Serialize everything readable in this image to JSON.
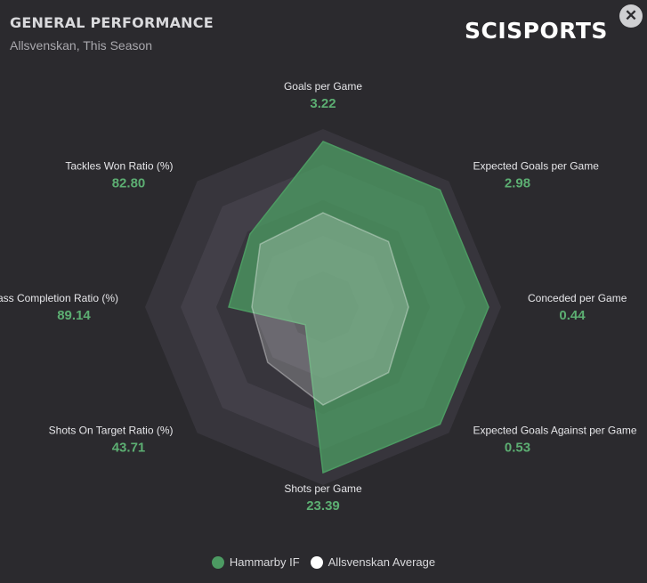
{
  "header": {
    "title": "GENERAL PERFORMANCE",
    "subtitle": "Allsvenskan, This Season",
    "logo": "SCISPORTS",
    "close_icon": "close-icon",
    "close_glyph": "✕"
  },
  "colors": {
    "team": "#4c9a62",
    "average": "#ffffff",
    "value_text": "#5cae72",
    "ring_dark": "#37353c",
    "ring_light": "#423f48"
  },
  "chart_data": {
    "type": "radar",
    "title": "GENERAL PERFORMANCE",
    "subtitle": "Allsvenskan, This Season",
    "axes": [
      {
        "label": "Goals per Game",
        "value": "3.22"
      },
      {
        "label": "Expected Goals per Game",
        "value": "2.98"
      },
      {
        "label": "Conceded per Game",
        "value": "0.44"
      },
      {
        "label": "Expected Goals Against per Game",
        "value": "0.53"
      },
      {
        "label": "Shots per Game",
        "value": "23.39"
      },
      {
        "label": "Shots On Target Ratio (%)",
        "value": "43.71"
      },
      {
        "label": "Pass Completion Ratio (%)",
        "value": "89.14"
      },
      {
        "label": "Tackles Won Ratio (%)",
        "value": "82.80"
      }
    ],
    "scale": {
      "min": 0,
      "max": 1,
      "rings": 5
    },
    "series": [
      {
        "name": "Hammarby IF",
        "normalized": [
          0.93,
          0.93,
          0.93,
          0.93,
          0.93,
          0.14,
          0.53,
          0.58
        ]
      },
      {
        "name": "Allsvenskan Average",
        "normalized": [
          0.53,
          0.52,
          0.48,
          0.52,
          0.55,
          0.44,
          0.4,
          0.5
        ]
      }
    ],
    "legend": {
      "position": "bottom"
    }
  }
}
